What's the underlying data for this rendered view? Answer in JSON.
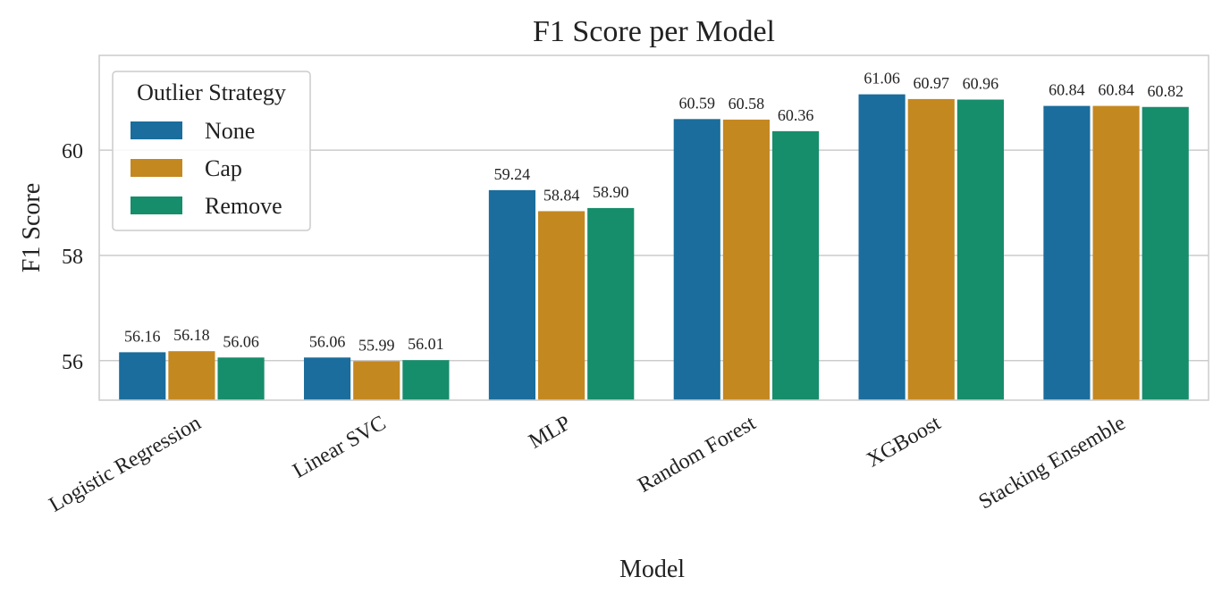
{
  "chart_data": {
    "type": "bar",
    "title": "F1 Score per Model",
    "xlabel": "Model",
    "ylabel": "F1 Score",
    "categories": [
      "Logistic Regression",
      "Linear SVC",
      "MLP",
      "Random Forest",
      "XGBoost",
      "Stacking Ensemble"
    ],
    "series": [
      {
        "name": "None",
        "color": "#1a6d9c",
        "values": [
          56.16,
          56.06,
          59.24,
          60.59,
          61.06,
          60.84
        ],
        "labels": [
          "56.16",
          "56.06",
          "59.24",
          "60.59",
          "61.06",
          "60.84"
        ]
      },
      {
        "name": "Cap",
        "color": "#c48821",
        "values": [
          56.18,
          55.99,
          58.84,
          60.58,
          60.97,
          60.84
        ],
        "labels": [
          "56.18",
          "55.99",
          "58.84",
          "60.58",
          "60.97",
          "60.84"
        ]
      },
      {
        "name": "Remove",
        "color": "#168d6b",
        "values": [
          56.06,
          56.01,
          58.9,
          60.36,
          60.96,
          60.82
        ],
        "labels": [
          "56.06",
          "56.01",
          "58.90",
          "60.36",
          "60.96",
          "60.82"
        ]
      }
    ],
    "ylim": [
      55.25,
      61.8
    ],
    "yticks": [
      56,
      58,
      60
    ],
    "grid": "horizontal",
    "legend": {
      "title": "Outlier Strategy",
      "placement": "top-left"
    }
  }
}
